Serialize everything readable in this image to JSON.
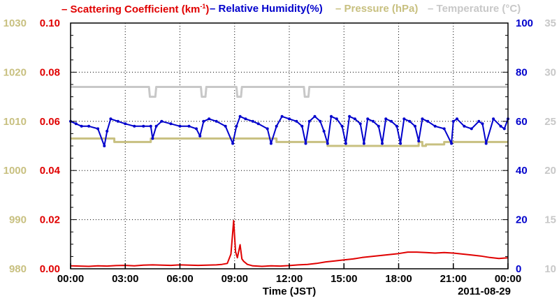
{
  "legend": [
    {
      "key": "scat",
      "label": "Scattering Coefficient (km",
      "sup": "-1",
      "tail": ")",
      "color": "#e00000"
    },
    {
      "key": "rh",
      "label": "Relative Humidity(%)",
      "color": "#0000cc"
    },
    {
      "key": "pres",
      "label": "Pressure (hPa)",
      "color": "#c8c080"
    },
    {
      "key": "temp",
      "label": "Temperature (°C)",
      "color": "#c8c8c8"
    }
  ],
  "chart_data": {
    "type": "line",
    "xlabel": "Time (JST)",
    "date_label": "2011-08-29",
    "x_ticks": [
      "00:00",
      "03:00",
      "06:00",
      "09:00",
      "12:00",
      "15:00",
      "18:00",
      "21:00",
      "00:00"
    ],
    "xlim": [
      0,
      24
    ],
    "axes": {
      "pressure": {
        "ylim": [
          980,
          1030
        ],
        "ticks": [
          980,
          990,
          1000,
          1010,
          1020,
          1030
        ],
        "color": "#c8c080"
      },
      "scattering": {
        "ylim": [
          0,
          0.1
        ],
        "ticks": [
          "0.00",
          "0.02",
          "0.04",
          "0.06",
          "0.08",
          "0.10"
        ],
        "color": "#e00000"
      },
      "humidity": {
        "ylim": [
          0,
          100
        ],
        "ticks": [
          0,
          20,
          40,
          60,
          80,
          100
        ],
        "color": "#0000cc"
      },
      "temperature": {
        "ylim": [
          10,
          35
        ],
        "ticks": [
          10,
          15,
          20,
          25,
          30,
          35
        ],
        "color": "#c8c8c8"
      }
    },
    "series": [
      {
        "name": "Temperature",
        "axis": "temperature",
        "color": "#c8c8c8",
        "step": true,
        "x": [
          0,
          4.3,
          4.35,
          4.65,
          4.7,
          7.15,
          7.2,
          7.4,
          7.45,
          9.1,
          9.15,
          9.35,
          9.4,
          12.8,
          12.85,
          13.05,
          13.1,
          24
        ],
        "y": [
          28.5,
          28.5,
          27.5,
          27.5,
          28.5,
          28.5,
          27.5,
          27.5,
          28.5,
          28.5,
          27.5,
          27.5,
          28.5,
          28.5,
          27.5,
          27.5,
          28.5,
          28.5
        ]
      },
      {
        "name": "Pressure",
        "axis": "pressure",
        "color": "#c8c080",
        "step": true,
        "x": [
          0,
          2.4,
          2.4,
          4.4,
          4.4,
          11.3,
          11.3,
          14.1,
          14.1,
          19.1,
          19.1,
          19.3,
          19.3,
          19.5,
          19.5,
          20.5,
          20.5,
          24
        ],
        "y": [
          1006.5,
          1006.5,
          1005.8,
          1005.8,
          1006.5,
          1006.5,
          1005.8,
          1005.8,
          1005.0,
          1005.0,
          1005.8,
          1005.8,
          1005.0,
          1005.0,
          1005.3,
          1005.3,
          1005.8,
          1005.8
        ]
      },
      {
        "name": "Relative Humidity",
        "axis": "humidity",
        "color": "#0000cc",
        "step": false,
        "x": [
          0,
          0.3,
          0.6,
          1.0,
          1.5,
          1.85,
          2.0,
          2.2,
          2.6,
          3.0,
          3.5,
          4.0,
          4.4,
          4.5,
          4.7,
          5.0,
          5.5,
          6.0,
          6.5,
          6.9,
          7.1,
          7.3,
          7.6,
          8.0,
          8.5,
          8.9,
          9.1,
          9.3,
          9.6,
          10.0,
          10.3,
          10.8,
          11.0,
          11.3,
          11.6,
          12.0,
          12.4,
          12.7,
          12.9,
          13.1,
          13.4,
          13.7,
          13.9,
          14.1,
          14.3,
          14.6,
          14.9,
          15.1,
          15.3,
          15.6,
          15.9,
          16.1,
          16.3,
          16.6,
          16.9,
          17.1,
          17.3,
          17.6,
          17.9,
          18.1,
          18.3,
          18.6,
          18.9,
          19.1,
          19.3,
          19.6,
          20.0,
          20.5,
          20.9,
          21.0,
          21.2,
          21.6,
          22.0,
          22.4,
          22.6,
          22.8,
          23.2,
          23.6,
          23.8,
          24
        ],
        "y": [
          60,
          59,
          58,
          58,
          57,
          50,
          56,
          61,
          60,
          59,
          58,
          58,
          58,
          53,
          58,
          60,
          59,
          58,
          58,
          57,
          54,
          60,
          61,
          60,
          58,
          51,
          58,
          62,
          61,
          60,
          59,
          57,
          51,
          58,
          62,
          61,
          60,
          58,
          51,
          60,
          62,
          60,
          56,
          51,
          62,
          61,
          58,
          51,
          62,
          61,
          59,
          51,
          61,
          60,
          58,
          51,
          61,
          60,
          58,
          51,
          61,
          60,
          58,
          52,
          61,
          60,
          58,
          57,
          51,
          60,
          61,
          58,
          57,
          60,
          59,
          51,
          61,
          58,
          57,
          61
        ]
      },
      {
        "name": "Scattering Coefficient",
        "axis": "scattering",
        "color": "#e00000",
        "step": false,
        "x": [
          0,
          0.5,
          1.0,
          1.5,
          2.0,
          2.5,
          3.0,
          3.5,
          4.0,
          4.5,
          5.0,
          5.5,
          6.0,
          6.5,
          7.0,
          7.5,
          8.0,
          8.3,
          8.6,
          8.8,
          8.95,
          9.05,
          9.15,
          9.3,
          9.4,
          9.5,
          9.7,
          10.0,
          10.5,
          11.0,
          11.5,
          12.0,
          12.5,
          13.0,
          13.5,
          14.0,
          14.5,
          15.0,
          15.5,
          16.0,
          16.5,
          17.0,
          17.5,
          18.0,
          18.5,
          19.0,
          19.5,
          20.0,
          20.5,
          21.0,
          21.5,
          22.0,
          22.5,
          23.0,
          23.5,
          24
        ],
        "y": [
          0.0012,
          0.0011,
          0.001,
          0.0012,
          0.0011,
          0.0013,
          0.0014,
          0.0012,
          0.0015,
          0.0016,
          0.0015,
          0.0014,
          0.0016,
          0.0015,
          0.0014,
          0.0015,
          0.0016,
          0.0018,
          0.0022,
          0.006,
          0.0196,
          0.007,
          0.0045,
          0.0098,
          0.004,
          0.003,
          0.0018,
          0.0012,
          0.001,
          0.0012,
          0.0011,
          0.0013,
          0.0016,
          0.0018,
          0.0022,
          0.0028,
          0.0032,
          0.0036,
          0.004,
          0.0046,
          0.005,
          0.0054,
          0.0058,
          0.0062,
          0.0068,
          0.0068,
          0.0066,
          0.0064,
          0.0066,
          0.0064,
          0.006,
          0.0056,
          0.0052,
          0.0046,
          0.0042,
          0.0045
        ]
      }
    ]
  }
}
